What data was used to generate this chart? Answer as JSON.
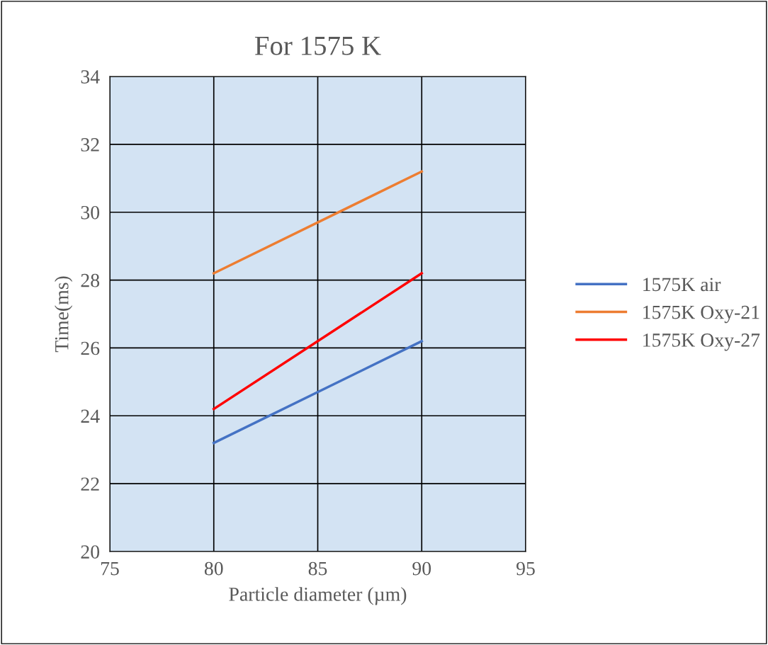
{
  "chart_data": {
    "type": "line",
    "title": "For 1575 K",
    "xlabel": "Particle diameter (µm)",
    "ylabel": "Time(ms)",
    "x": [
      80,
      90
    ],
    "series": [
      {
        "name": "1575K air",
        "color": "#4472c4",
        "values": [
          23.2,
          26.2
        ]
      },
      {
        "name": "1575K Oxy-21",
        "color": "#ed7d31",
        "values": [
          28.2,
          31.2
        ]
      },
      {
        "name": "1575K Oxy-27",
        "color": "#ff0000",
        "values": [
          24.2,
          28.2
        ]
      }
    ],
    "xlim": [
      75,
      95
    ],
    "xticks": [
      75,
      80,
      85,
      90,
      95
    ],
    "ylim": [
      20,
      34
    ],
    "yticks": [
      20,
      22,
      24,
      26,
      28,
      30,
      32,
      34
    ],
    "grid": true,
    "legend": "right",
    "marker": "none",
    "line_style": "solid"
  }
}
